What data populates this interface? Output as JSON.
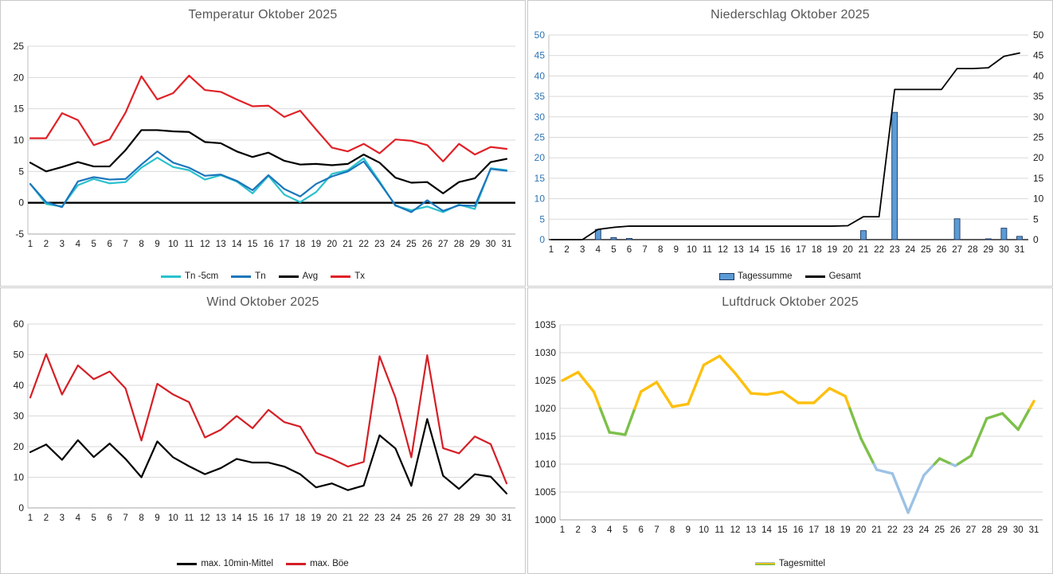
{
  "dashboard": {
    "month": "Oktober 2025"
  },
  "chart_data": [
    {
      "id": "temperature",
      "type": "line",
      "title": "Temperatur Oktober 2025",
      "categories": [
        1,
        2,
        3,
        4,
        5,
        6,
        7,
        8,
        9,
        10,
        11,
        12,
        13,
        14,
        15,
        16,
        17,
        18,
        19,
        20,
        21,
        22,
        23,
        24,
        25,
        26,
        27,
        28,
        29,
        30,
        31
      ],
      "ylim": [
        -5,
        25
      ],
      "ystep": 5,
      "grid": true,
      "zero_line": true,
      "legend_position": "bottom",
      "axis_colors": {
        "left": "#1a1a1a",
        "x": "#1a1a1a"
      },
      "series": [
        {
          "name": "Tn -5cm",
          "type": "line",
          "color": "#29c1ce",
          "values": [
            3.0,
            -0.2,
            -0.6,
            2.8,
            3.8,
            3.1,
            3.3,
            5.6,
            7.2,
            5.7,
            5.2,
            3.7,
            4.4,
            3.4,
            1.5,
            4.3,
            1.3,
            0.1,
            1.7,
            4.6,
            5.2,
            7.1,
            3.4,
            -0.5,
            -1.2,
            -0.6,
            -1.5,
            -0.3,
            -1.0,
            5.5,
            5.2
          ]
        },
        {
          "name": "Tn",
          "type": "line",
          "color": "#1b76bc",
          "values": [
            3.0,
            0.1,
            -0.7,
            3.4,
            4.1,
            3.7,
            3.8,
            6.1,
            8.2,
            6.4,
            5.6,
            4.3,
            4.5,
            3.5,
            2.0,
            4.4,
            2.2,
            1.0,
            3.0,
            4.2,
            5.0,
            6.6,
            3.2,
            -0.4,
            -1.5,
            0.4,
            -1.3,
            -0.4,
            -0.5,
            5.4,
            5.1
          ]
        },
        {
          "name": "Avg",
          "type": "line",
          "color": "#000000",
          "values": [
            6.4,
            5.0,
            5.7,
            6.5,
            5.8,
            5.8,
            8.4,
            11.6,
            11.6,
            11.4,
            11.3,
            9.7,
            9.5,
            8.2,
            7.3,
            8.0,
            6.7,
            6.1,
            6.2,
            6.0,
            6.2,
            7.7,
            6.4,
            4.0,
            3.2,
            3.3,
            1.5,
            3.3,
            3.9,
            6.5,
            7.0
          ]
        },
        {
          "name": "Tx",
          "type": "line",
          "color": "#e02127",
          "values": [
            10.3,
            10.3,
            14.3,
            13.2,
            9.2,
            10.1,
            14.4,
            20.2,
            16.5,
            17.5,
            20.3,
            18.0,
            17.7,
            16.5,
            15.4,
            15.5,
            13.7,
            14.7,
            11.7,
            8.8,
            8.2,
            9.4,
            7.9,
            10.1,
            9.9,
            9.2,
            6.6,
            9.4,
            7.7,
            8.9,
            8.6
          ]
        }
      ]
    },
    {
      "id": "precipitation",
      "type": "bar+line",
      "title": "Niederschlag Oktober 2025",
      "categories": [
        1,
        2,
        3,
        4,
        5,
        6,
        7,
        8,
        9,
        10,
        11,
        12,
        13,
        14,
        15,
        16,
        17,
        18,
        19,
        20,
        21,
        22,
        23,
        24,
        25,
        26,
        27,
        28,
        29,
        30,
        31
      ],
      "ylim": [
        0,
        50
      ],
      "ystep": 5,
      "grid": true,
      "right_axis": true,
      "zero_axis_black": true,
      "legend_position": "bottom",
      "axis_colors": {
        "left": "#2e74b5",
        "right": "#1a1a1a",
        "x": "#1a1a1a"
      },
      "series": [
        {
          "name": "Tagessumme",
          "type": "bar",
          "color": "#5b9bd5",
          "border": "#1f3864",
          "values": [
            0,
            0,
            0,
            2.5,
            0.5,
            0.3,
            0,
            0,
            0,
            0,
            0,
            0,
            0,
            0,
            0,
            0,
            0,
            0,
            0,
            0,
            2.2,
            0,
            31.1,
            0,
            0,
            0,
            5.1,
            0,
            0.2,
            2.8,
            0.8
          ]
        },
        {
          "name": "Gesamt",
          "type": "line",
          "color": "#000000",
          "values": [
            0,
            0,
            0,
            2.5,
            3.0,
            3.3,
            3.3,
            3.3,
            3.3,
            3.3,
            3.3,
            3.3,
            3.3,
            3.3,
            3.3,
            3.3,
            3.3,
            3.3,
            3.3,
            3.4,
            5.6,
            5.6,
            36.7,
            36.7,
            36.7,
            36.7,
            41.8,
            41.8,
            42.0,
            44.8,
            45.6
          ]
        }
      ]
    },
    {
      "id": "wind",
      "type": "line",
      "title": "Wind Oktober 2025",
      "categories": [
        1,
        2,
        3,
        4,
        5,
        6,
        7,
        8,
        9,
        10,
        11,
        12,
        13,
        14,
        15,
        16,
        17,
        18,
        19,
        20,
        21,
        22,
        23,
        24,
        25,
        26,
        27,
        28,
        29,
        30,
        31
      ],
      "ylim": [
        0,
        60
      ],
      "ystep": 10,
      "grid": true,
      "legend_position": "bottom",
      "axis_colors": {
        "left": "#1a1a1a",
        "x": "#1a1a1a"
      },
      "series": [
        {
          "name": "max. 10min-Mittel",
          "type": "line",
          "color": "#000000",
          "values": [
            18.2,
            20.7,
            15.7,
            22.1,
            16.6,
            21.0,
            16.0,
            10.0,
            21.7,
            16.5,
            13.6,
            11.0,
            13.0,
            16.0,
            14.8,
            14.8,
            13.5,
            11.0,
            6.7,
            8.0,
            5.8,
            7.3,
            23.7,
            19.4,
            7.2,
            29.0,
            10.5,
            6.2,
            11.0,
            10.2,
            4.7
          ]
        },
        {
          "name": "max. Böe",
          "type": "line",
          "color": "#d51f26",
          "values": [
            36.0,
            50.2,
            37.0,
            46.5,
            42.0,
            44.5,
            39.0,
            22.0,
            40.5,
            37.0,
            34.5,
            23.0,
            25.5,
            30.0,
            26.0,
            32.0,
            28.0,
            26.5,
            18.0,
            16.0,
            13.5,
            15.0,
            49.5,
            36.0,
            16.5,
            49.8,
            19.5,
            17.8,
            23.3,
            20.8,
            8.0
          ]
        }
      ]
    },
    {
      "id": "pressure",
      "type": "line-threshold",
      "title": "Luftdruck Oktober 2025",
      "categories": [
        1,
        2,
        3,
        4,
        5,
        6,
        7,
        8,
        9,
        10,
        11,
        12,
        13,
        14,
        15,
        16,
        17,
        18,
        19,
        20,
        21,
        22,
        23,
        24,
        25,
        26,
        27,
        28,
        29,
        30,
        31
      ],
      "ylim": [
        1000,
        1035
      ],
      "ystep": 5,
      "grid": true,
      "legend_position": "bottom",
      "axis_colors": {
        "left": "#1a1a1a",
        "x": "#1a1a1a"
      },
      "series": [
        {
          "name": "Tagesmittel",
          "type": "threshold-line",
          "color_rules": [
            {
              "min": 1020,
              "color": "#fdc00f"
            },
            {
              "min": 1010,
              "color": "#7dc04a"
            },
            {
              "min": null,
              "color": "#9cc2e5"
            }
          ],
          "values": [
            1025.0,
            1026.5,
            1023.0,
            1015.7,
            1015.3,
            1023.0,
            1024.7,
            1020.3,
            1020.8,
            1027.8,
            1029.4,
            1026.3,
            1022.7,
            1022.5,
            1023.0,
            1021.0,
            1021.0,
            1023.6,
            1022.2,
            1014.6,
            1009.0,
            1008.3,
            1001.3,
            1008.0,
            1011.0,
            1009.7,
            1011.5,
            1018.2,
            1019.1,
            1016.2,
            1021.3
          ]
        }
      ]
    }
  ]
}
